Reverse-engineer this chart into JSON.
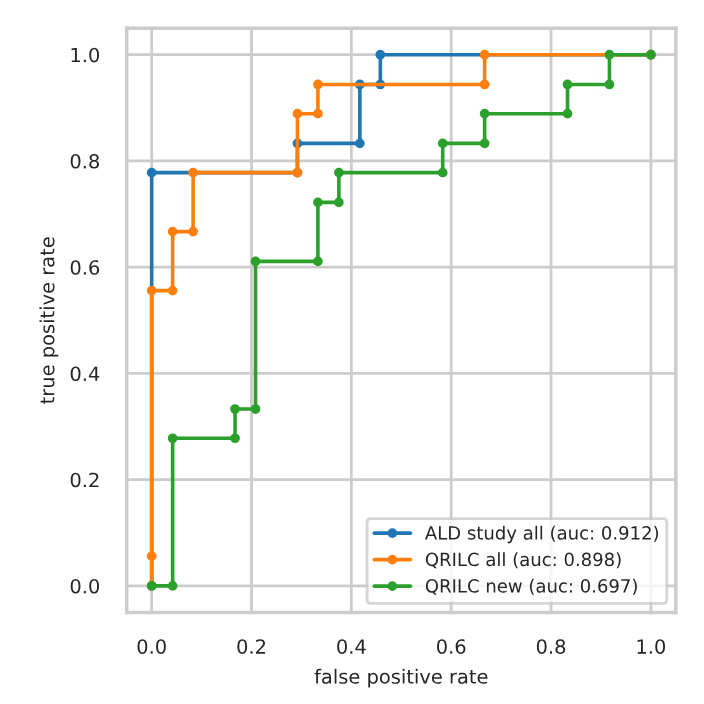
{
  "chart_data": {
    "type": "line",
    "xlabel": "false positive rate",
    "ylabel": "true positive rate",
    "series": [
      {
        "name": "ALD study all (auc: 0.912)",
        "color": "#1f77b4",
        "x": [
          0,
          0,
          0.292,
          0.292,
          0.417,
          0.417,
          0.458,
          0.458,
          1
        ],
        "values": [
          0,
          0.778,
          0.778,
          0.833,
          0.833,
          0.944,
          0.944,
          1,
          1
        ]
      },
      {
        "name": "QRILC all (auc: 0.898)",
        "color": "#ff7f0e",
        "x": [
          0,
          0,
          0,
          0.042,
          0.042,
          0.083,
          0.083,
          0.292,
          0.292,
          0.333,
          0.333,
          0.667,
          0.667,
          1
        ],
        "values": [
          0,
          0.056,
          0.556,
          0.556,
          0.667,
          0.667,
          0.778,
          0.778,
          0.889,
          0.889,
          0.944,
          0.944,
          1,
          1
        ]
      },
      {
        "name": "QRILC new (auc: 0.697)",
        "color": "#2ca02c",
        "x": [
          0,
          0.042,
          0.042,
          0.167,
          0.167,
          0.208,
          0.208,
          0.333,
          0.333,
          0.375,
          0.375,
          0.583,
          0.583,
          0.667,
          0.667,
          0.833,
          0.833,
          0.917,
          0.917,
          1
        ],
        "values": [
          0,
          0,
          0.278,
          0.278,
          0.333,
          0.333,
          0.611,
          0.611,
          0.722,
          0.722,
          0.778,
          0.778,
          0.833,
          0.833,
          0.889,
          0.889,
          0.944,
          0.944,
          1,
          1
        ]
      }
    ],
    "xlim": [
      -0.05,
      1.05
    ],
    "ylim": [
      -0.05,
      1.05
    ],
    "xticks": [
      {
        "value": 0,
        "label": "0.0"
      },
      0.2,
      0.4,
      0.6,
      0.8,
      {
        "value": 1,
        "label": "1.0"
      }
    ],
    "yticks": [
      {
        "value": 0,
        "label": "0.0"
      },
      0.2,
      0.4,
      0.6,
      0.8,
      {
        "value": 1,
        "label": "1.0"
      }
    ],
    "grid": true,
    "legend": "bottom right",
    "marker": "circle",
    "line_style": "solid"
  }
}
